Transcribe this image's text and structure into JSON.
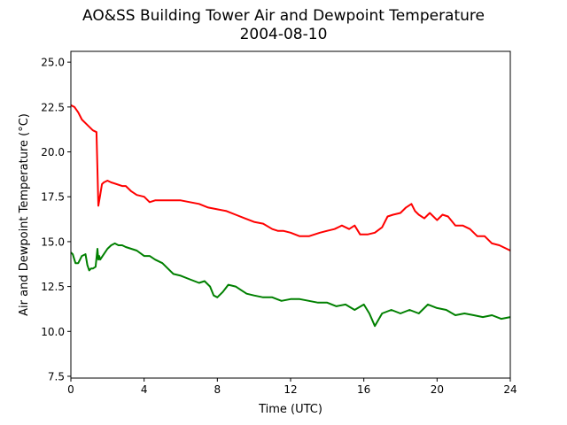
{
  "chart_data": {
    "type": "line",
    "title": "AO&SS Building Tower Air and Dewpoint Temperature",
    "subtitle": "2004-08-10",
    "xlabel": "Time (UTC)",
    "ylabel": "Air and Dewpoint Temperature (°C)",
    "xlim": [
      0,
      24
    ],
    "ylim": [
      7.4,
      25.6
    ],
    "xticks": [
      0,
      4,
      8,
      12,
      16,
      20,
      24
    ],
    "yticks": [
      "7.5",
      "10.0",
      "12.5",
      "15.0",
      "17.5",
      "20.0",
      "22.5",
      "25.0"
    ],
    "grid": false,
    "series": [
      {
        "color": "#ff0000",
        "x": [
          0,
          0.2,
          0.4,
          0.6,
          0.8,
          1.0,
          1.2,
          1.4,
          1.45,
          1.5,
          1.6,
          1.7,
          1.8,
          2.0,
          2.2,
          2.5,
          2.8,
          3.0,
          3.3,
          3.6,
          4.0,
          4.3,
          4.6,
          5.0,
          5.5,
          6.0,
          6.5,
          7.0,
          7.5,
          8.0,
          8.5,
          9.0,
          9.5,
          10.0,
          10.5,
          11.0,
          11.3,
          11.6,
          12.0,
          12.5,
          13.0,
          13.3,
          13.6,
          14.0,
          14.4,
          14.8,
          15.2,
          15.5,
          15.8,
          16.2,
          16.6,
          17.0,
          17.3,
          17.6,
          18.0,
          18.3,
          18.6,
          18.8,
          19.0,
          19.3,
          19.6,
          20.0,
          20.3,
          20.6,
          21.0,
          21.4,
          21.8,
          22.2,
          22.6,
          23.0,
          23.4,
          23.8,
          24.0
        ],
        "y": [
          22.6,
          22.5,
          22.2,
          21.8,
          21.6,
          21.4,
          21.2,
          21.1,
          19.0,
          17.0,
          17.6,
          18.2,
          18.3,
          18.4,
          18.3,
          18.2,
          18.1,
          18.1,
          17.8,
          17.6,
          17.5,
          17.2,
          17.3,
          17.3,
          17.3,
          17.3,
          17.2,
          17.1,
          16.9,
          16.8,
          16.7,
          16.5,
          16.3,
          16.1,
          16.0,
          15.7,
          15.6,
          15.6,
          15.5,
          15.3,
          15.3,
          15.4,
          15.5,
          15.6,
          15.7,
          15.9,
          15.7,
          15.9,
          15.4,
          15.4,
          15.5,
          15.8,
          16.4,
          16.5,
          16.6,
          16.9,
          17.1,
          16.7,
          16.5,
          16.3,
          16.6,
          16.2,
          16.5,
          16.4,
          15.9,
          15.9,
          15.7,
          15.3,
          15.3,
          14.9,
          14.8,
          14.6,
          14.5
        ]
      },
      {
        "color": "#008000",
        "x": [
          0,
          0.1,
          0.25,
          0.4,
          0.6,
          0.8,
          0.9,
          1.0,
          1.1,
          1.2,
          1.35,
          1.45,
          1.5,
          1.55,
          1.6,
          1.8,
          2.0,
          2.2,
          2.4,
          2.6,
          2.8,
          3.0,
          3.3,
          3.6,
          4.0,
          4.3,
          4.6,
          5.0,
          5.3,
          5.6,
          6.0,
          6.5,
          7.0,
          7.3,
          7.6,
          7.8,
          8.0,
          8.3,
          8.6,
          9.0,
          9.3,
          9.6,
          10.0,
          10.5,
          11.0,
          11.5,
          12.0,
          12.5,
          13.0,
          13.5,
          14.0,
          14.5,
          15.0,
          15.5,
          16.0,
          16.3,
          16.6,
          17.0,
          17.5,
          18.0,
          18.5,
          19.0,
          19.5,
          20.0,
          20.5,
          21.0,
          21.5,
          22.0,
          22.5,
          23.0,
          23.5,
          24.0
        ],
        "y": [
          14.4,
          14.3,
          13.8,
          13.8,
          14.2,
          14.3,
          13.7,
          13.4,
          13.5,
          13.5,
          13.6,
          14.6,
          14.0,
          14.2,
          14.0,
          14.3,
          14.6,
          14.8,
          14.9,
          14.8,
          14.8,
          14.7,
          14.6,
          14.5,
          14.2,
          14.2,
          14.0,
          13.8,
          13.5,
          13.2,
          13.1,
          12.9,
          12.7,
          12.8,
          12.5,
          12.0,
          11.9,
          12.2,
          12.6,
          12.5,
          12.3,
          12.1,
          12.0,
          11.9,
          11.9,
          11.7,
          11.8,
          11.8,
          11.7,
          11.6,
          11.6,
          11.4,
          11.5,
          11.2,
          11.5,
          11.0,
          10.3,
          11.0,
          11.2,
          11.0,
          11.2,
          11.0,
          11.5,
          11.3,
          11.2,
          10.9,
          11.0,
          10.9,
          10.8,
          10.9,
          10.7,
          10.8
        ]
      }
    ]
  }
}
